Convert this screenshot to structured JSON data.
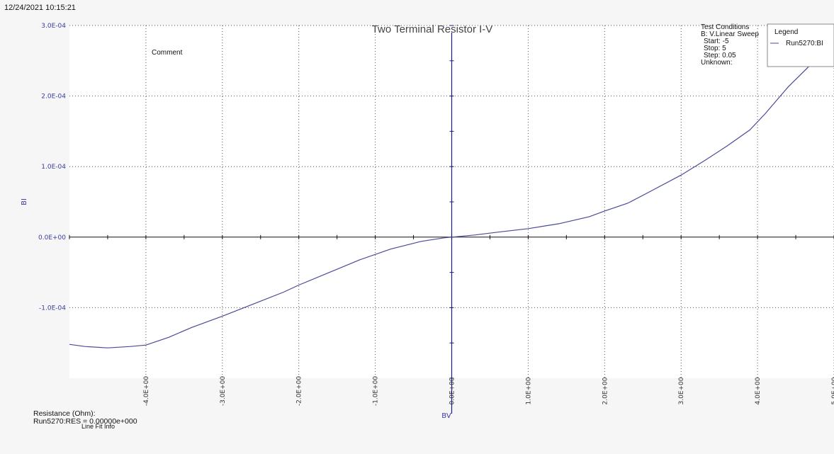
{
  "timestamp": "12/24/2021 10:15:21",
  "chart_data": {
    "type": "line",
    "title": "Two Terminal Resistor I-V",
    "xlabel": "BV",
    "ylabel": "BI",
    "xlim": [
      -5,
      5
    ],
    "ylim": [
      -0.0002,
      0.0003
    ],
    "x_tick_values": [
      -4,
      -3,
      -2,
      -1,
      0,
      1,
      2,
      3,
      4,
      5
    ],
    "x_tick_labels": [
      "-4.0E+00",
      "-3.0E+00",
      "-2.0E+00",
      "-1.0E+00",
      "0.0E+00",
      "1.0E+00",
      "2.0E+00",
      "3.0E+00",
      "4.0E+00",
      "5.0E+00"
    ],
    "y_tick_values": [
      0.0003,
      0.0002,
      0.0001,
      0,
      -0.0001
    ],
    "y_tick_labels": [
      "3.0E-04",
      "2.0E-04",
      "1.0E-04",
      "0.0E+00",
      "-1.0E-04"
    ],
    "grid": true,
    "legend_position": "top-right",
    "series": [
      {
        "name": "Run5270:BI",
        "color": "#4a4a9a",
        "x": [
          -5,
          -4.8,
          -4.5,
          -4.2,
          -4,
          -3.7,
          -3.4,
          -3,
          -2.6,
          -2.2,
          -2,
          -1.6,
          -1.2,
          -0.8,
          -0.4,
          -0.1,
          0,
          0.3,
          0.6,
          1,
          1.4,
          1.8,
          2,
          2.3,
          2.6,
          3,
          3.3,
          3.6,
          3.9,
          4.1,
          4.4,
          4.7,
          5
        ],
        "y": [
          -0.000152,
          -0.000155,
          -0.000157,
          -0.000155,
          -0.000153,
          -0.000142,
          -0.000128,
          -0.000112,
          -9.5e-05,
          -7.8e-05,
          -6.8e-05,
          -5e-05,
          -3.2e-05,
          -1.7e-05,
          -6e-06,
          -1e-06,
          0,
          3e-06,
          7e-06,
          1.2e-05,
          1.9e-05,
          2.9e-05,
          3.7e-05,
          4.8e-05,
          6.5e-05,
          8.8e-05,
          0.000108,
          0.000129,
          0.000152,
          0.000175,
          0.000213,
          0.000245,
          0.000285
        ]
      }
    ]
  },
  "comment": "Comment",
  "test_conditions": {
    "heading": "Test Conditions",
    "lines": [
      "B: V.Linear Sweep",
      "Start: -5",
      "Stop: 5",
      "Step: 0.05",
      "Unknown:"
    ]
  },
  "legend": {
    "title": "Legend",
    "entry": "Run5270:BI"
  },
  "footer": {
    "line1": "Resistance (Ohm):",
    "line2": "Run5270:RES = 0.00000e+000",
    "line3": "Line Fit Info"
  }
}
